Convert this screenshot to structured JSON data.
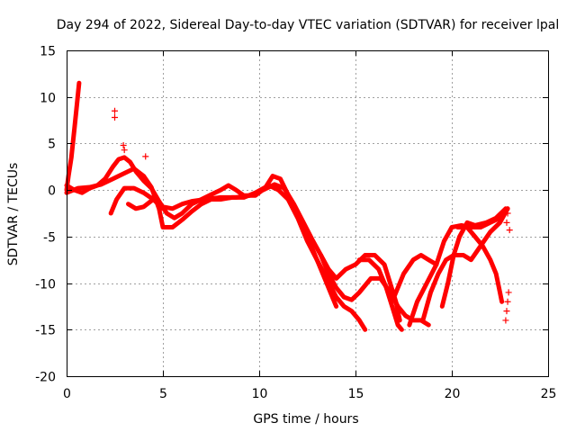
{
  "chart_data": {
    "type": "scatter",
    "title": "Day 294 of 2022, Sidereal Day-to-day VTEC variation (SDTVAR) for receiver lpal",
    "xlabel": "GPS time / hours",
    "ylabel": "SDTVAR / TECUs",
    "xlim": [
      0,
      25
    ],
    "ylim": [
      -20,
      15
    ],
    "xticks": [
      0,
      5,
      10,
      15,
      20,
      25
    ],
    "yticks": [
      15,
      10,
      5,
      0,
      -5,
      -10,
      -15,
      -20
    ],
    "xtick_labels": [
      "0",
      "5",
      "10",
      "15",
      "20",
      "25"
    ],
    "ytick_labels": [
      "15",
      "10",
      "5",
      "0",
      "-5",
      "-10",
      "-15",
      "-20"
    ],
    "grid": true,
    "legend": "none",
    "marker": "+",
    "color": "#ff0000",
    "series": [
      {
        "name": "s1",
        "points": [
          [
            0.0,
            0.0
          ],
          [
            0.1,
            1.5
          ],
          [
            0.25,
            3.5
          ],
          [
            0.4,
            6.5
          ],
          [
            0.55,
            9.5
          ],
          [
            0.65,
            11.5
          ]
        ]
      },
      {
        "name": "s2",
        "points": [
          [
            0.0,
            0.5
          ],
          [
            0.4,
            0.0
          ],
          [
            0.8,
            -0.3
          ],
          [
            1.2,
            0.2
          ],
          [
            1.6,
            0.5
          ],
          [
            2.0,
            1.2
          ],
          [
            2.4,
            2.5
          ],
          [
            2.7,
            3.3
          ],
          [
            3.0,
            3.5
          ],
          [
            3.3,
            3.0
          ],
          [
            3.6,
            2.0
          ],
          [
            4.0,
            1.0
          ],
          [
            4.4,
            0.2
          ],
          [
            4.8,
            -1.2
          ],
          [
            5.2,
            -2.5
          ],
          [
            5.6,
            -3.0
          ],
          [
            6.0,
            -2.5
          ],
          [
            6.5,
            -1.5
          ],
          [
            7.0,
            -1.0
          ],
          [
            7.5,
            -0.5
          ],
          [
            8.0,
            0.0
          ],
          [
            8.4,
            0.5
          ],
          [
            8.8,
            0.0
          ],
          [
            9.2,
            -0.6
          ],
          [
            9.8,
            -0.6
          ],
          [
            10.3,
            0.2
          ],
          [
            10.7,
            1.5
          ],
          [
            11.1,
            1.2
          ],
          [
            11.5,
            -0.5
          ],
          [
            12.0,
            -2.5
          ],
          [
            12.5,
            -5.0
          ],
          [
            13.0,
            -7.5
          ],
          [
            13.4,
            -9.5
          ],
          [
            13.8,
            -11.5
          ],
          [
            14.0,
            -12.5
          ]
        ]
      },
      {
        "name": "s3",
        "points": [
          [
            0.0,
            -0.3
          ],
          [
            0.6,
            0.2
          ],
          [
            1.2,
            0.3
          ],
          [
            1.8,
            0.6
          ],
          [
            2.4,
            1.2
          ],
          [
            3.0,
            1.8
          ],
          [
            3.5,
            2.3
          ],
          [
            4.0,
            1.5
          ],
          [
            4.4,
            0.3
          ],
          [
            4.8,
            -2.0
          ],
          [
            5.0,
            -4.0
          ],
          [
            5.5,
            -4.0
          ],
          [
            6.0,
            -3.2
          ],
          [
            6.5,
            -2.3
          ],
          [
            7.0,
            -1.5
          ],
          [
            7.5,
            -1.0
          ],
          [
            8.0,
            -1.0
          ],
          [
            8.6,
            -0.8
          ],
          [
            9.2,
            -0.8
          ],
          [
            9.8,
            -0.3
          ],
          [
            10.5,
            0.5
          ],
          [
            11.0,
            0.0
          ],
          [
            11.5,
            -1.0
          ],
          [
            12.0,
            -3.0
          ],
          [
            12.5,
            -5.5
          ],
          [
            13.0,
            -7.5
          ],
          [
            13.5,
            -9.5
          ],
          [
            14.0,
            -11.5
          ],
          [
            14.4,
            -12.5
          ],
          [
            14.8,
            -13.0
          ],
          [
            15.2,
            -14.0
          ],
          [
            15.5,
            -15.0
          ]
        ]
      },
      {
        "name": "s4",
        "points": [
          [
            2.3,
            -2.5
          ],
          [
            2.6,
            -1.0
          ],
          [
            3.0,
            0.2
          ],
          [
            3.5,
            0.2
          ],
          [
            4.0,
            -0.3
          ],
          [
            4.5,
            -1.0
          ],
          [
            5.0,
            -1.8
          ],
          [
            5.5,
            -2.0
          ],
          [
            6.0,
            -1.5
          ],
          [
            6.5,
            -1.2
          ],
          [
            7.2,
            -1.0
          ],
          [
            8.0,
            -0.8
          ],
          [
            8.8,
            -0.8
          ],
          [
            9.5,
            -0.6
          ],
          [
            10.2,
            0.0
          ],
          [
            10.8,
            0.6
          ],
          [
            11.3,
            0.2
          ],
          [
            11.8,
            -1.5
          ],
          [
            12.3,
            -3.5
          ],
          [
            12.8,
            -5.5
          ],
          [
            13.2,
            -7.0
          ],
          [
            13.6,
            -9.0
          ],
          [
            14.0,
            -10.5
          ],
          [
            14.4,
            -11.5
          ],
          [
            14.8,
            -11.8
          ],
          [
            15.2,
            -11.0
          ],
          [
            15.8,
            -9.5
          ],
          [
            16.3,
            -9.5
          ],
          [
            16.8,
            -11.0
          ],
          [
            17.2,
            -12.5
          ],
          [
            17.6,
            -13.5
          ],
          [
            18.0,
            -14.0
          ],
          [
            18.4,
            -14.0
          ],
          [
            18.8,
            -14.5
          ]
        ]
      },
      {
        "name": "s5",
        "points": [
          [
            3.2,
            -1.5
          ],
          [
            3.6,
            -2.0
          ],
          [
            4.0,
            -1.8
          ],
          [
            4.5,
            -1.0
          ],
          [
            5.0,
            -2.0
          ]
        ]
      },
      {
        "name": "s6",
        "points": [
          [
            13.2,
            -7.0
          ],
          [
            13.6,
            -8.5
          ],
          [
            14.0,
            -9.5
          ],
          [
            14.5,
            -8.5
          ],
          [
            15.0,
            -8.0
          ],
          [
            15.5,
            -7.0
          ],
          [
            16.0,
            -7.0
          ],
          [
            16.5,
            -8.0
          ],
          [
            16.8,
            -10.0
          ],
          [
            17.1,
            -12.0
          ],
          [
            17.3,
            -14.0
          ]
        ]
      },
      {
        "name": "s7",
        "points": [
          [
            15.2,
            -7.5
          ],
          [
            15.7,
            -7.5
          ],
          [
            16.2,
            -8.5
          ],
          [
            16.6,
            -10.5
          ],
          [
            16.9,
            -12.5
          ],
          [
            17.2,
            -14.5
          ],
          [
            17.4,
            -15.0
          ]
        ]
      },
      {
        "name": "s8",
        "points": [
          [
            17.0,
            -11.5
          ],
          [
            17.5,
            -9.0
          ],
          [
            18.0,
            -7.5
          ],
          [
            18.4,
            -7.0
          ],
          [
            18.8,
            -7.5
          ],
          [
            19.2,
            -8.0
          ]
        ]
      },
      {
        "name": "s9",
        "points": [
          [
            17.8,
            -14.5
          ],
          [
            18.2,
            -12.0
          ],
          [
            18.7,
            -10.0
          ],
          [
            19.2,
            -8.0
          ],
          [
            19.6,
            -5.5
          ],
          [
            20.0,
            -4.0
          ],
          [
            20.5,
            -3.8
          ],
          [
            21.0,
            -4.0
          ],
          [
            21.5,
            -4.0
          ],
          [
            22.0,
            -3.5
          ],
          [
            22.5,
            -3.0
          ],
          [
            22.9,
            -2.0
          ]
        ]
      },
      {
        "name": "s10",
        "points": [
          [
            18.5,
            -14.0
          ],
          [
            18.9,
            -11.0
          ],
          [
            19.3,
            -9.0
          ],
          [
            19.7,
            -7.5
          ],
          [
            20.1,
            -7.0
          ],
          [
            20.6,
            -7.0
          ],
          [
            21.0,
            -7.5
          ],
          [
            21.5,
            -6.0
          ],
          [
            22.0,
            -4.5
          ],
          [
            22.5,
            -3.5
          ],
          [
            22.9,
            -2.0
          ]
        ]
      },
      {
        "name": "s11",
        "points": [
          [
            19.5,
            -12.5
          ],
          [
            19.8,
            -10.0
          ],
          [
            20.1,
            -7.0
          ],
          [
            20.4,
            -5.0
          ],
          [
            20.8,
            -3.5
          ],
          [
            21.2,
            -3.8
          ],
          [
            21.8,
            -3.5
          ],
          [
            22.3,
            -3.0
          ],
          [
            22.8,
            -2.0
          ]
        ]
      },
      {
        "name": "s12",
        "points": [
          [
            20.3,
            -4.0
          ],
          [
            20.8,
            -4.0
          ],
          [
            21.2,
            -5.0
          ],
          [
            21.6,
            -6.0
          ],
          [
            22.0,
            -7.5
          ],
          [
            22.3,
            -9.0
          ],
          [
            22.5,
            -11.0
          ],
          [
            22.6,
            -12.0
          ]
        ]
      }
    ],
    "markers": [
      {
        "x": 2.5,
        "y": 8.5
      },
      {
        "x": 2.5,
        "y": 7.8
      },
      {
        "x": 2.95,
        "y": 4.8
      },
      {
        "x": 3.0,
        "y": 4.3
      },
      {
        "x": 4.1,
        "y": 3.6
      },
      {
        "x": 22.8,
        "y": -14.0
      },
      {
        "x": 22.85,
        "y": -13.0
      },
      {
        "x": 22.9,
        "y": -12.0
      },
      {
        "x": 22.95,
        "y": -11.0
      },
      {
        "x": 23.0,
        "y": -4.3
      },
      {
        "x": 22.9,
        "y": -2.5
      },
      {
        "x": 22.85,
        "y": -3.5
      }
    ]
  }
}
